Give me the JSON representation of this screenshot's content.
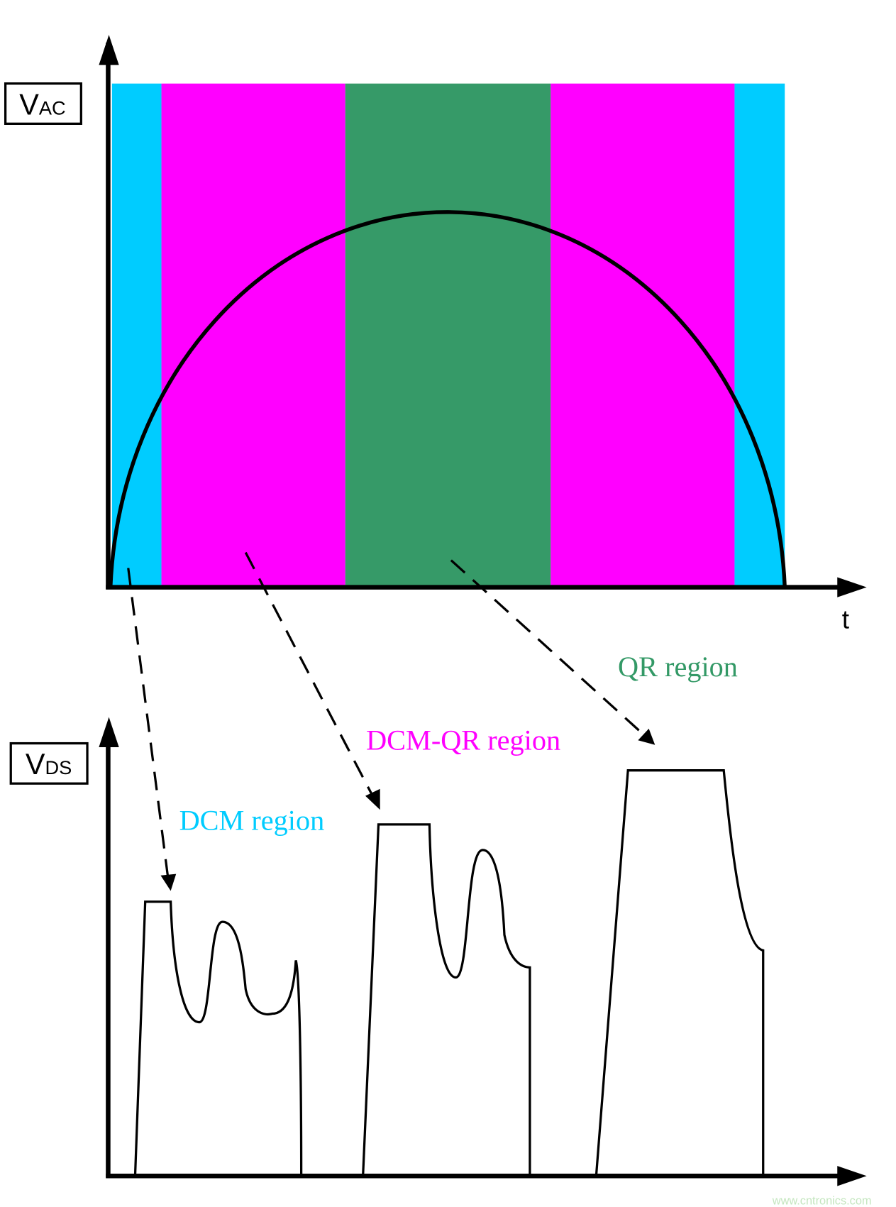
{
  "top_plot": {
    "y_label_main": "V",
    "y_label_sub": "AC",
    "x_label": "t",
    "bands": [
      {
        "region": "DCM",
        "color": "#00CCFF"
      },
      {
        "region": "DCM-QR",
        "color": "#FF00FF"
      },
      {
        "region": "QR",
        "color": "#339966"
      },
      {
        "region": "DCM-QR",
        "color": "#FF00FF"
      },
      {
        "region": "DCM",
        "color": "#00CCFF"
      }
    ]
  },
  "bottom_plot": {
    "y_label_main": "V",
    "y_label_sub": "DS"
  },
  "region_labels": {
    "qr": {
      "text": "QR region",
      "color": "#339966"
    },
    "dcm_qr": {
      "text": "DCM-QR region",
      "color": "#FF00FF"
    },
    "dcm": {
      "text": "DCM region",
      "color": "#00CCFF"
    }
  },
  "watermark": "www.cntronics.com"
}
